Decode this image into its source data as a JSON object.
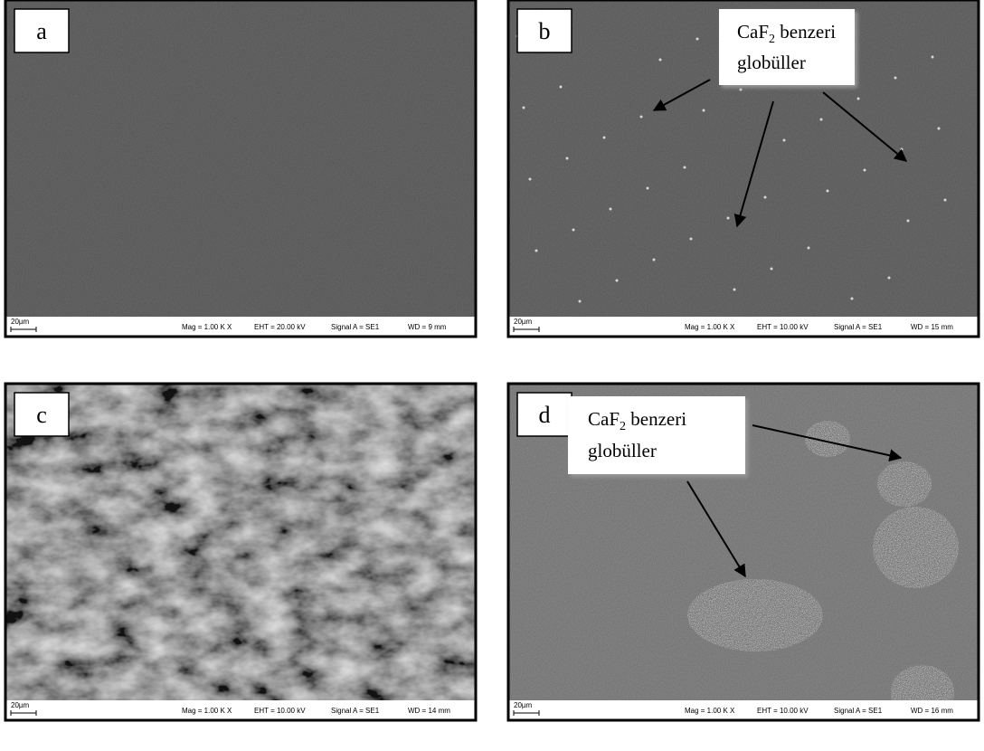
{
  "panels": [
    {
      "label": "a",
      "scale": "20µm",
      "mag": "Mag =  1.00 K X",
      "eht": "EHT = 20.00 kV",
      "signal": "Signal A = SE1",
      "wd": "WD =  9 mm"
    },
    {
      "label": "b",
      "scale": "20µm",
      "mag": "Mag =  1.00 K X",
      "eht": "EHT = 10.00 kV",
      "signal": "Signal A = SE1",
      "wd": "WD =  15 mm"
    },
    {
      "label": "c",
      "scale": "20µm",
      "mag": "Mag =  1.00 K X",
      "eht": "EHT = 10.00 kV",
      "signal": "Signal A = SE1",
      "wd": "WD =  14 mm"
    },
    {
      "label": "d",
      "scale": "20µm",
      "mag": "Mag =  1.00 K X",
      "eht": "EHT = 10.00 kV",
      "signal": "Signal A = SE1",
      "wd": "WD =  16 mm"
    }
  ],
  "callouts": [
    {
      "main": "CaF",
      "subscript": "2",
      "rest": " benzeri",
      "line2": "globüller"
    },
    {
      "main": "CaF",
      "subscript": "2",
      "rest": " benzeri",
      "line2": "globüller"
    }
  ]
}
